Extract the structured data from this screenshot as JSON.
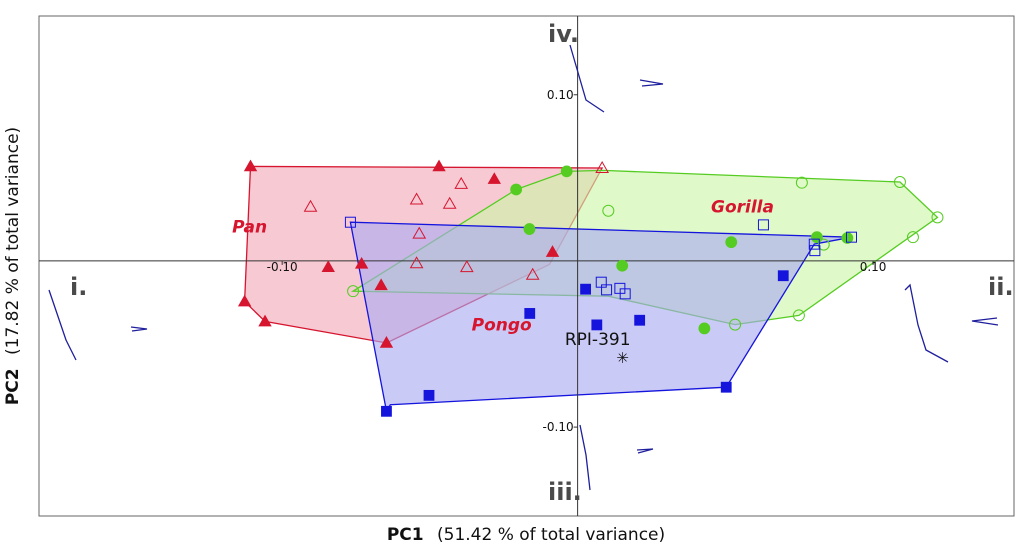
{
  "chart_data": {
    "type": "scatter",
    "xlabel_bold": "PC1",
    "xlabel_rest": "(51.42 % of total variance)",
    "ylabel_bold": "PC2",
    "ylabel_rest": "(17.82 % of total variance)",
    "xlim": [
      -0.1823,
      0.1477
    ],
    "ylim": [
      -0.1535,
      0.1474
    ],
    "x_ticks": [
      {
        "value": -0.1,
        "label": "-0.10"
      },
      {
        "value": 0.1,
        "label": "0.10"
      }
    ],
    "y_ticks": [
      {
        "value": 0.1,
        "label": "0.10"
      },
      {
        "value": -0.1,
        "label": "-0.10"
      }
    ],
    "quadrant_labels": [
      {
        "id": "i",
        "label": "i."
      },
      {
        "id": "ii",
        "label": "ii."
      },
      {
        "id": "iii",
        "label": "iii."
      },
      {
        "id": "iv",
        "label": "iv."
      }
    ],
    "groups": [
      {
        "name": "Pan",
        "label_at": [
          -0.111,
          0.017
        ],
        "color": "#d6152f",
        "fill": "#f2aab8",
        "marker": "triangle",
        "hull": [
          [
            -0.1107,
            0.0569
          ],
          [
            0.0083,
            0.0559
          ],
          [
            -0.0095,
            -0.0021
          ],
          [
            -0.0647,
            -0.0493
          ],
          [
            -0.1058,
            -0.0364
          ],
          [
            -0.1127,
            -0.0244
          ]
        ],
        "filled": [
          [
            -0.1107,
            0.0569
          ],
          [
            -0.0469,
            0.0569
          ],
          [
            -0.0282,
            0.0493
          ],
          [
            -0.0844,
            -0.0037
          ],
          [
            -0.0731,
            -0.0017
          ],
          [
            -0.0665,
            -0.0146
          ],
          [
            -0.0085,
            0.0054
          ],
          [
            -0.1127,
            -0.0244
          ],
          [
            -0.1058,
            -0.0364
          ],
          [
            -0.0647,
            -0.0493
          ]
        ],
        "open": [
          [
            0.0083,
            0.0559
          ],
          [
            -0.0904,
            0.0326
          ],
          [
            -0.0545,
            0.037
          ],
          [
            -0.0433,
            0.0344
          ],
          [
            -0.0394,
            0.0464
          ],
          [
            -0.0536,
            0.0164
          ],
          [
            -0.0545,
            -0.0014
          ],
          [
            -0.0375,
            -0.0037
          ],
          [
            -0.0152,
            -0.0083
          ]
        ]
      },
      {
        "name": "Gorilla",
        "label_at": [
          0.0558,
          0.029
        ],
        "color": "#55cc22",
        "fill": "#cdf5a8",
        "marker": "circle",
        "hull": [
          [
            -0.0208,
            0.043
          ],
          [
            -0.0037,
            0.0539
          ],
          [
            0.0087,
            0.0545
          ],
          [
            0.1091,
            0.0475
          ],
          [
            0.1218,
            0.0262
          ],
          [
            0.0749,
            -0.0328
          ],
          [
            0.0533,
            -0.0383
          ],
          [
            0.0104,
            -0.0212
          ],
          [
            -0.076,
            -0.0182
          ]
        ],
        "filled": [
          [
            -0.0208,
            0.043
          ],
          [
            -0.0037,
            0.0539
          ],
          [
            -0.0163,
            0.0192
          ],
          [
            0.052,
            0.0113
          ],
          [
            0.0151,
            -0.0029
          ],
          [
            0.0429,
            -0.0406
          ],
          [
            0.081,
            0.0143
          ],
          [
            0.0913,
            0.0138
          ]
        ],
        "open": [
          [
            0.0104,
            0.0302
          ],
          [
            0.0759,
            0.0471
          ],
          [
            0.1091,
            0.0475
          ],
          [
            0.1218,
            0.0262
          ],
          [
            0.1135,
            0.0143
          ],
          [
            0.0749,
            -0.0328
          ],
          [
            0.0533,
            -0.0383
          ],
          [
            0.0833,
            0.0098
          ],
          [
            -0.076,
            -0.0182
          ]
        ]
      },
      {
        "name": "Pongo",
        "label_at": [
          -0.0257,
          -0.0418
        ],
        "color": "#1414dd",
        "fill": "#a9aaf2",
        "marker": "square",
        "hull": [
          [
            -0.0769,
            0.0233
          ],
          [
            0.0927,
            0.0143
          ],
          [
            0.0801,
            0.0101
          ],
          [
            0.0503,
            -0.076
          ],
          [
            -0.0634,
            -0.0865
          ],
          [
            -0.0647,
            -0.0905
          ]
        ],
        "filled": [
          [
            -0.0647,
            -0.0905
          ],
          [
            -0.0503,
            -0.0809
          ],
          [
            -0.0162,
            -0.0316
          ],
          [
            0.0027,
            -0.017
          ],
          [
            0.0065,
            -0.0385
          ],
          [
            0.021,
            -0.0357
          ],
          [
            0.0503,
            -0.076
          ],
          [
            0.0696,
            -0.0089
          ]
        ],
        "open": [
          [
            -0.0769,
            0.0233
          ],
          [
            0.0629,
            0.0217
          ],
          [
            0.0803,
            0.0062
          ],
          [
            0.0927,
            0.0143
          ],
          [
            0.0801,
            0.0101
          ],
          [
            0.008,
            -0.0128
          ],
          [
            0.0098,
            -0.0174
          ],
          [
            0.0143,
            -0.0165
          ],
          [
            0.0161,
            -0.0198
          ]
        ]
      }
    ],
    "specimen": {
      "label": "RPI-391",
      "x": 0.0152,
      "y": -0.0583,
      "label_at": [
        0.0068,
        -0.0506
      ]
    },
    "legend": "none",
    "grid": false
  }
}
